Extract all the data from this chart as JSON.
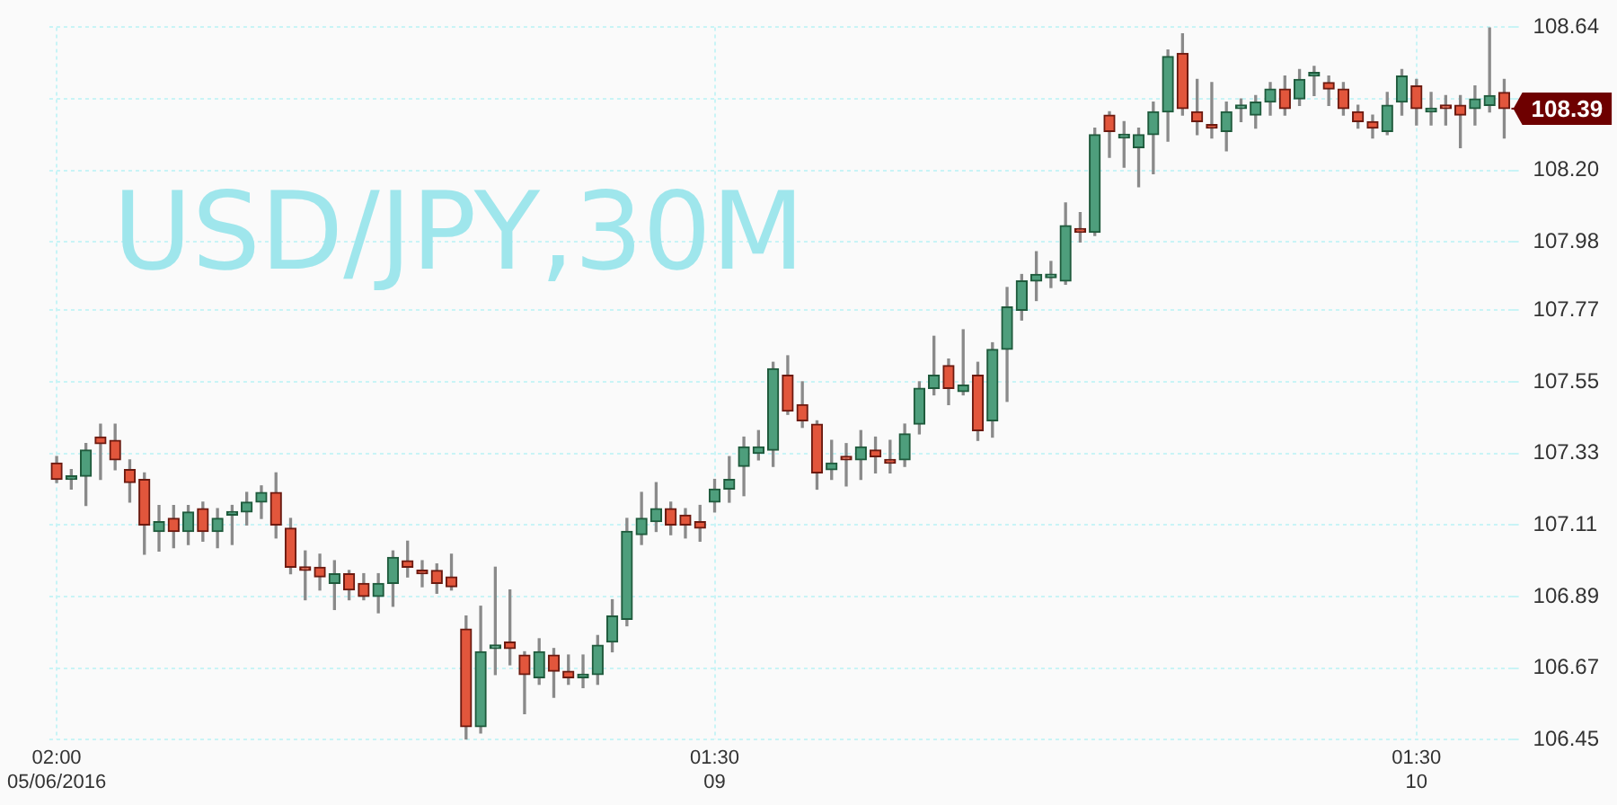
{
  "chart_data": {
    "type": "candlestick",
    "title": "USD/JPY,30M",
    "categories": [
      "02:00\n05/06/2016",
      null,
      null,
      null,
      null,
      null,
      null,
      null,
      null,
      null,
      null,
      null,
      null,
      null,
      null,
      null,
      null,
      null,
      null,
      null,
      null,
      null,
      null,
      null,
      null,
      null,
      null,
      null,
      null,
      null,
      null,
      null,
      null,
      null,
      null,
      null,
      null,
      null,
      null,
      null,
      null,
      null,
      null,
      null,
      null,
      "01:30\n09",
      null,
      null,
      null,
      null,
      null,
      null,
      null,
      null,
      null,
      null,
      null,
      null,
      null,
      null,
      null,
      null,
      null,
      null,
      null,
      null,
      null,
      null,
      null,
      null,
      null,
      null,
      null,
      null,
      null,
      null,
      null,
      null,
      null,
      null,
      null,
      null,
      null,
      null,
      null,
      null,
      null,
      null,
      null,
      null,
      null,
      null,
      null,
      "01:30\n10",
      null,
      null,
      null,
      null,
      null,
      null
    ],
    "ohlc": [
      [
        107.3,
        107.32,
        107.24,
        107.25
      ],
      [
        107.25,
        107.28,
        107.22,
        107.26
      ],
      [
        107.26,
        107.36,
        107.17,
        107.34
      ],
      [
        107.38,
        107.42,
        107.25,
        107.36
      ],
      [
        107.37,
        107.42,
        107.28,
        107.31
      ],
      [
        107.28,
        107.31,
        107.18,
        107.24
      ],
      [
        107.25,
        107.27,
        107.02,
        107.11
      ],
      [
        107.09,
        107.17,
        107.03,
        107.12
      ],
      [
        107.13,
        107.17,
        107.04,
        107.09
      ],
      [
        107.09,
        107.17,
        107.05,
        107.15
      ],
      [
        107.16,
        107.18,
        107.06,
        107.09
      ],
      [
        107.09,
        107.16,
        107.04,
        107.13
      ],
      [
        107.14,
        107.17,
        107.05,
        107.15
      ],
      [
        107.15,
        107.21,
        107.11,
        107.18
      ],
      [
        107.18,
        107.23,
        107.13,
        107.21
      ],
      [
        107.21,
        107.27,
        107.07,
        107.11
      ],
      [
        107.1,
        107.13,
        106.96,
        106.98
      ],
      [
        106.98,
        107.03,
        106.88,
        106.97
      ],
      [
        106.98,
        107.02,
        106.91,
        106.95
      ],
      [
        106.93,
        107.0,
        106.85,
        106.96
      ],
      [
        106.96,
        106.97,
        106.88,
        106.91
      ],
      [
        106.93,
        106.96,
        106.88,
        106.89
      ],
      [
        106.89,
        106.96,
        106.84,
        106.93
      ],
      [
        106.93,
        107.03,
        106.86,
        107.01
      ],
      [
        107.0,
        107.06,
        106.95,
        106.98
      ],
      [
        106.97,
        107.0,
        106.92,
        106.96
      ],
      [
        106.97,
        106.99,
        106.9,
        106.93
      ],
      [
        106.95,
        107.02,
        106.91,
        106.92
      ],
      [
        106.79,
        106.83,
        106.45,
        106.49
      ],
      [
        106.49,
        106.86,
        106.47,
        106.72
      ],
      [
        106.73,
        106.98,
        106.65,
        106.74
      ],
      [
        106.75,
        106.91,
        106.68,
        106.73
      ],
      [
        106.71,
        106.72,
        106.53,
        106.65
      ],
      [
        106.64,
        106.76,
        106.62,
        106.72
      ],
      [
        106.71,
        106.73,
        106.58,
        106.66
      ],
      [
        106.66,
        106.71,
        106.62,
        106.64
      ],
      [
        106.64,
        106.71,
        106.61,
        106.65
      ],
      [
        106.65,
        106.77,
        106.62,
        106.74
      ],
      [
        106.75,
        106.88,
        106.72,
        106.83
      ],
      [
        106.82,
        107.13,
        106.8,
        107.09
      ],
      [
        107.08,
        107.21,
        107.05,
        107.13
      ],
      [
        107.12,
        107.24,
        107.09,
        107.16
      ],
      [
        107.16,
        107.18,
        107.08,
        107.11
      ],
      [
        107.14,
        107.16,
        107.07,
        107.11
      ],
      [
        107.12,
        107.17,
        107.06,
        107.1
      ],
      [
        107.18,
        107.25,
        107.15,
        107.22
      ],
      [
        107.22,
        107.32,
        107.18,
        107.25
      ],
      [
        107.29,
        107.38,
        107.2,
        107.35
      ],
      [
        107.33,
        107.4,
        107.31,
        107.35
      ],
      [
        107.34,
        107.61,
        107.29,
        107.59
      ],
      [
        107.57,
        107.63,
        107.45,
        107.46
      ],
      [
        107.48,
        107.55,
        107.41,
        107.43
      ],
      [
        107.42,
        107.43,
        107.22,
        107.27
      ],
      [
        107.28,
        107.37,
        107.25,
        107.3
      ],
      [
        107.32,
        107.36,
        107.23,
        107.31
      ],
      [
        107.31,
        107.4,
        107.25,
        107.35
      ],
      [
        107.34,
        107.38,
        107.27,
        107.32
      ],
      [
        107.31,
        107.37,
        107.27,
        107.3
      ],
      [
        107.31,
        107.42,
        107.29,
        107.39
      ],
      [
        107.42,
        107.55,
        107.39,
        107.53
      ],
      [
        107.53,
        107.69,
        107.51,
        107.57
      ],
      [
        107.6,
        107.62,
        107.48,
        107.53
      ],
      [
        107.52,
        107.71,
        107.51,
        107.54
      ],
      [
        107.57,
        107.61,
        107.37,
        107.4
      ],
      [
        107.43,
        107.67,
        107.38,
        107.65
      ],
      [
        107.65,
        107.84,
        107.49,
        107.78
      ],
      [
        107.77,
        107.88,
        107.74,
        107.86
      ],
      [
        107.86,
        107.95,
        107.8,
        107.88
      ],
      [
        107.87,
        107.92,
        107.84,
        107.88
      ],
      [
        107.86,
        108.1,
        107.85,
        108.03
      ],
      [
        108.02,
        108.07,
        107.98,
        108.01
      ],
      [
        108.01,
        108.33,
        108.0,
        108.31
      ],
      [
        108.37,
        108.38,
        108.24,
        108.32
      ],
      [
        108.3,
        108.35,
        108.21,
        108.31
      ],
      [
        108.27,
        108.33,
        108.15,
        108.31
      ],
      [
        108.31,
        108.41,
        108.19,
        108.38
      ],
      [
        108.38,
        108.57,
        108.29,
        108.55
      ],
      [
        108.56,
        108.62,
        108.37,
        108.39
      ],
      [
        108.38,
        108.48,
        108.31,
        108.35
      ],
      [
        108.34,
        108.47,
        108.3,
        108.33
      ],
      [
        108.32,
        108.41,
        108.26,
        108.38
      ],
      [
        108.39,
        108.42,
        108.35,
        108.4
      ],
      [
        108.37,
        108.43,
        108.33,
        108.41
      ],
      [
        108.41,
        108.47,
        108.37,
        108.45
      ],
      [
        108.45,
        108.49,
        108.37,
        108.39
      ],
      [
        108.42,
        108.51,
        108.4,
        108.48
      ],
      [
        108.49,
        108.52,
        108.43,
        108.5
      ],
      [
        108.47,
        108.49,
        108.4,
        108.45
      ],
      [
        108.45,
        108.47,
        108.37,
        108.39
      ],
      [
        108.38,
        108.4,
        108.33,
        108.35
      ],
      [
        108.35,
        108.37,
        108.3,
        108.33
      ],
      [
        108.32,
        108.44,
        108.31,
        108.4
      ],
      [
        108.41,
        108.51,
        108.37,
        108.49
      ],
      [
        108.46,
        108.48,
        108.34,
        108.39
      ],
      [
        108.38,
        108.44,
        108.34,
        108.39
      ],
      [
        108.4,
        108.43,
        108.34,
        108.39
      ],
      [
        108.4,
        108.43,
        108.27,
        108.37
      ],
      [
        108.39,
        108.46,
        108.34,
        108.42
      ],
      [
        108.4,
        108.64,
        108.38,
        108.43
      ],
      [
        108.44,
        108.48,
        108.3,
        108.39
      ]
    ],
    "ylim": [
      106.45,
      108.64
    ],
    "yticks": [
      106.45,
      106.67,
      106.89,
      107.11,
      107.33,
      107.55,
      107.77,
      107.98,
      {
        "value": 108.2,
        "label": "108.20"
      },
      {
        "value": 108.42,
        "label": null
      },
      108.64
    ],
    "grid": true,
    "ref_lines": [
      {
        "axis": "y",
        "value": 108.39,
        "label": "108.39"
      }
    ]
  }
}
